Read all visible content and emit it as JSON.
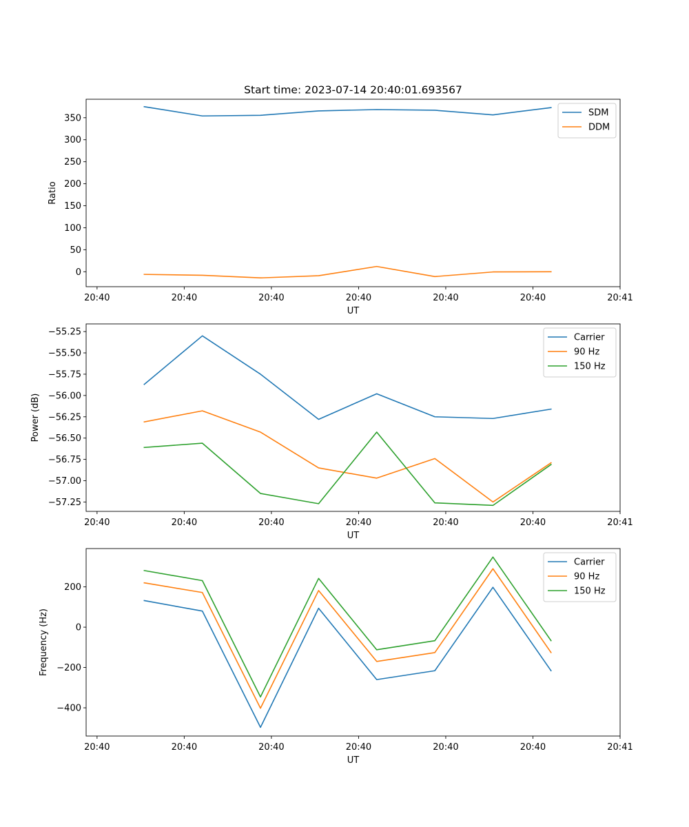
{
  "chart_data": [
    {
      "type": "line",
      "title": "Start time: 2023-07-14 20:40:01.693567",
      "xlabel": "UT",
      "ylabel": "Ratio",
      "ylim": [
        -34,
        392
      ],
      "yticks": [
        0,
        50,
        100,
        150,
        200,
        250,
        300,
        350
      ],
      "xlim": [
        0,
        9.188
      ],
      "xticks": [
        0.188,
        1.688,
        3.188,
        4.688,
        6.188,
        7.688,
        9.188
      ],
      "xtick_labels": [
        "20:40",
        "20:40",
        "20:40",
        "20:40",
        "20:40",
        "20:40",
        "20:41"
      ],
      "x": [
        1,
        2,
        3,
        4,
        5,
        6,
        7,
        8
      ],
      "legend_position": "upper right",
      "series": [
        {
          "name": "SDM",
          "color": "#1f77b4",
          "values": [
            375,
            354,
            355.5,
            365.5,
            368.5,
            367,
            356.5,
            373
          ]
        },
        {
          "name": "DDM",
          "color": "#ff7f0e",
          "values": [
            -6,
            -8,
            -14,
            -9,
            12,
            -11,
            -0.5,
            0
          ]
        }
      ]
    },
    {
      "type": "line",
      "title": "",
      "xlabel": "UT",
      "ylabel": "Power (dB)",
      "ylim": [
        -57.36,
        -55.16
      ],
      "yticks": [
        -57.25,
        -57.0,
        -56.75,
        -56.5,
        -56.25,
        -56.0,
        -55.75,
        -55.5,
        -55.25
      ],
      "ytick_labels": [
        "−57.25",
        "−57.00",
        "−56.75",
        "−56.50",
        "−56.25",
        "−56.00",
        "−55.75",
        "−55.50",
        "−55.25"
      ],
      "xlim": [
        0,
        9.188
      ],
      "xticks": [
        0.188,
        1.688,
        3.188,
        4.688,
        6.188,
        7.688,
        9.188
      ],
      "xtick_labels": [
        "20:40",
        "20:40",
        "20:40",
        "20:40",
        "20:40",
        "20:40",
        "20:41"
      ],
      "x": [
        1,
        2,
        3,
        4,
        5,
        6,
        7,
        8
      ],
      "legend_position": "upper right",
      "series": [
        {
          "name": "Carrier",
          "color": "#1f77b4",
          "values": [
            -55.87,
            -55.3,
            -55.75,
            -56.28,
            -55.98,
            -56.25,
            -56.27,
            -56.16
          ]
        },
        {
          "name": "90 Hz",
          "color": "#ff7f0e",
          "values": [
            -56.31,
            -56.18,
            -56.43,
            -56.85,
            -56.97,
            -56.74,
            -57.25,
            -56.79
          ]
        },
        {
          "name": "150 Hz",
          "color": "#2ca02c",
          "values": [
            -56.61,
            -56.56,
            -57.15,
            -57.27,
            -56.43,
            -57.26,
            -57.29,
            -56.81
          ]
        }
      ]
    },
    {
      "type": "line",
      "title": "",
      "xlabel": "UT",
      "ylabel": "Frequency (Hz)",
      "ylim": [
        -540,
        390
      ],
      "yticks": [
        -400,
        -200,
        0,
        200
      ],
      "ytick_labels": [
        "−400",
        "−200",
        "0",
        "200"
      ],
      "xlim": [
        0,
        9.188
      ],
      "xticks": [
        0.188,
        1.688,
        3.188,
        4.688,
        6.188,
        7.688,
        9.188
      ],
      "xtick_labels": [
        "20:40",
        "20:40",
        "20:40",
        "20:40",
        "20:40",
        "20:40",
        "20:41"
      ],
      "x": [
        1,
        2,
        3,
        4,
        5,
        6,
        7,
        8
      ],
      "legend_position": "upper right",
      "series": [
        {
          "name": "Carrier",
          "color": "#1f77b4",
          "values": [
            132,
            80,
            -497,
            94,
            -260,
            -216,
            198,
            -216
          ]
        },
        {
          "name": "90 Hz",
          "color": "#ff7f0e",
          "values": [
            220,
            172,
            -402,
            182,
            -170,
            -126,
            290,
            -126
          ]
        },
        {
          "name": "150 Hz",
          "color": "#2ca02c",
          "values": [
            281,
            231,
            -346,
            242,
            -112,
            -67,
            348,
            -67
          ]
        }
      ]
    }
  ]
}
